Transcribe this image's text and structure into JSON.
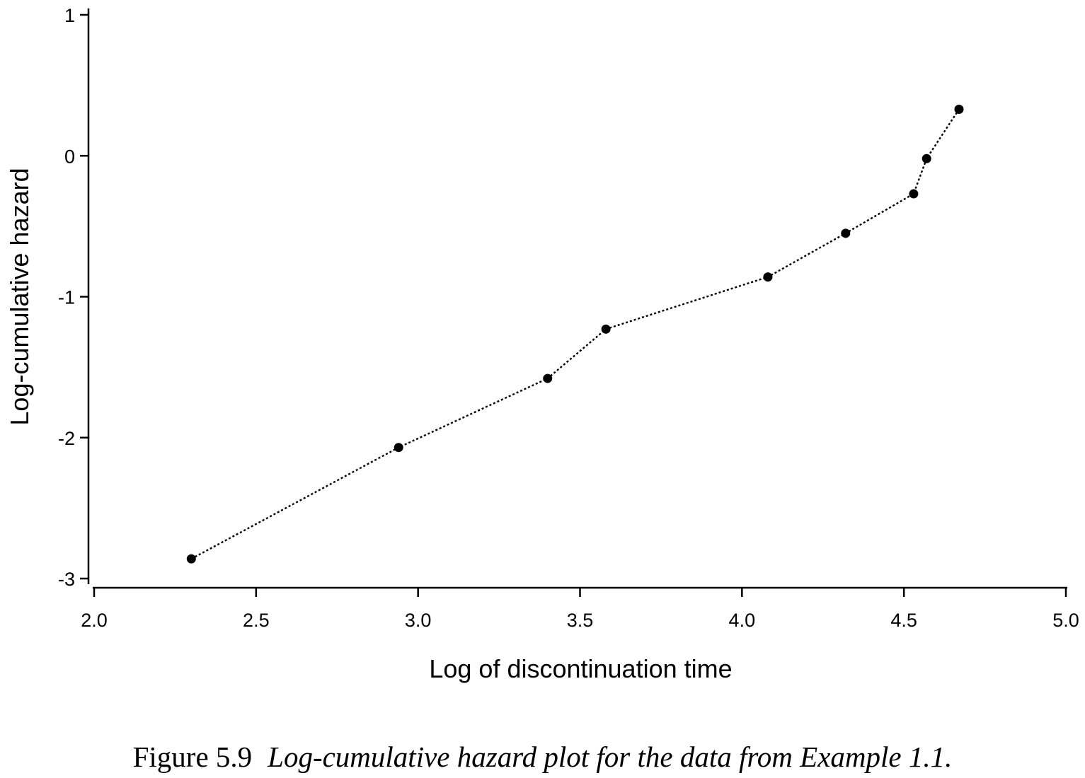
{
  "chart_data": {
    "type": "line",
    "xlabel": "Log of discontinuation time",
    "ylabel": "Log-cumulative hazard",
    "xlim": [
      2.0,
      5.0
    ],
    "ylim": [
      -3,
      1
    ],
    "x_ticks": [
      "2.0",
      "2.5",
      "3.0",
      "3.5",
      "4.0",
      "4.5",
      "5.0"
    ],
    "y_ticks": [
      "1",
      "0",
      "-1",
      "-2",
      "-3"
    ],
    "line_style": "dotted",
    "marker": "filled-circle",
    "series": [
      {
        "x": [
          2.3,
          2.94,
          3.4,
          3.58,
          4.08,
          4.32,
          4.53,
          4.57,
          4.67
        ],
        "y": [
          -2.86,
          -2.07,
          -1.58,
          -1.23,
          -0.86,
          -0.55,
          -0.27,
          -0.02,
          0.33
        ]
      }
    ],
    "colors": {
      "line": "#000000",
      "marker": "#000000",
      "axis": "#000000"
    }
  },
  "caption": {
    "label": "Figure 5.9",
    "text": "Log-cumulative hazard plot for the data from Example 1.1."
  }
}
